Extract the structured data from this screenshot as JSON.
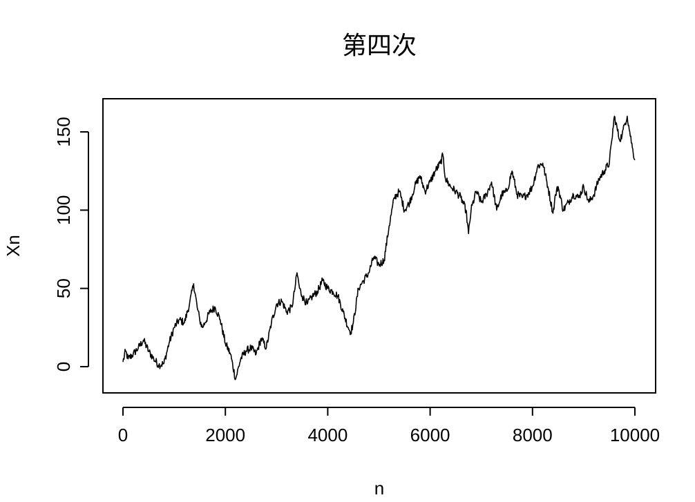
{
  "chart_data": {
    "type": "line",
    "title": "第四次",
    "xlabel": "n",
    "ylabel": "Xn",
    "xlim": [
      0,
      10000
    ],
    "ylim": [
      -10,
      165
    ],
    "x_ticks": [
      0,
      2000,
      4000,
      6000,
      8000,
      10000
    ],
    "y_ticks": [
      0,
      50,
      100,
      150
    ],
    "x_tick_labels": [
      "0",
      "2000",
      "4000",
      "6000",
      "8000",
      "10000"
    ],
    "y_tick_labels": [
      "0",
      "50",
      "100",
      "150"
    ],
    "grid": false,
    "legend": "none",
    "line_color": "#000000",
    "series": [
      {
        "x": [
          0,
          50,
          100,
          200,
          300,
          400,
          500,
          600,
          700,
          800,
          900,
          1000,
          1100,
          1200,
          1300,
          1380,
          1450,
          1500,
          1550,
          1600,
          1700,
          1800,
          1900,
          2000,
          2100,
          2200,
          2300,
          2400,
          2500,
          2600,
          2700,
          2800,
          2900,
          3000,
          3100,
          3200,
          3300,
          3350,
          3400,
          3450,
          3500,
          3600,
          3700,
          3800,
          3900,
          4000,
          4100,
          4200,
          4300,
          4400,
          4450,
          4500,
          4600,
          4700,
          4800,
          4900,
          5000,
          5100,
          5200,
          5300,
          5400,
          5500,
          5600,
          5700,
          5800,
          5900,
          6000,
          6100,
          6200,
          6250,
          6300,
          6400,
          6500,
          6600,
          6700,
          6750,
          6800,
          6900,
          7000,
          7100,
          7200,
          7300,
          7400,
          7500,
          7600,
          7700,
          7800,
          7900,
          8000,
          8100,
          8200,
          8300,
          8400,
          8450,
          8500,
          8600,
          8700,
          8800,
          8900,
          9000,
          9100,
          9200,
          9300,
          9400,
          9500,
          9550,
          9600,
          9700,
          9750,
          9800,
          9850,
          9900,
          9950,
          10000
        ],
        "values": [
          3,
          10,
          5,
          8,
          12,
          17,
          10,
          5,
          1,
          2,
          15,
          25,
          30,
          28,
          40,
          53,
          38,
          30,
          25,
          28,
          35,
          38,
          30,
          15,
          8,
          -8,
          5,
          10,
          12,
          8,
          18,
          12,
          28,
          40,
          42,
          35,
          38,
          48,
          60,
          50,
          45,
          40,
          45,
          48,
          55,
          50,
          48,
          45,
          35,
          25,
          22,
          28,
          50,
          55,
          60,
          70,
          65,
          68,
          90,
          108,
          112,
          100,
          105,
          115,
          122,
          112,
          118,
          125,
          130,
          135,
          120,
          115,
          112,
          108,
          100,
          85,
          100,
          112,
          105,
          110,
          118,
          100,
          110,
          112,
          125,
          110,
          108,
          110,
          115,
          128,
          130,
          115,
          98,
          110,
          115,
          100,
          105,
          110,
          108,
          115,
          105,
          110,
          120,
          125,
          130,
          145,
          160,
          145,
          148,
          155,
          160,
          150,
          140,
          132
        ]
      }
    ]
  }
}
